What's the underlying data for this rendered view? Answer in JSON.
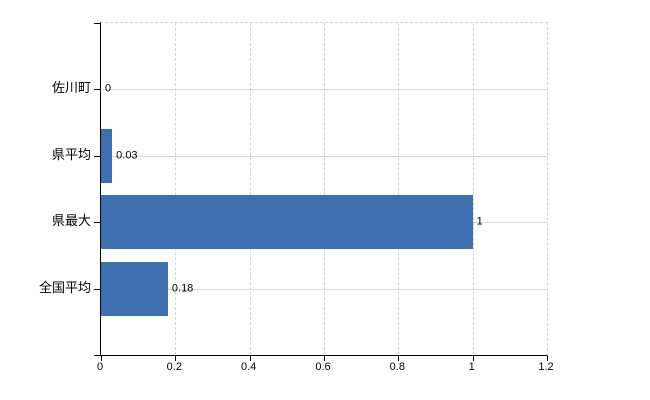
{
  "chart_data": {
    "type": "bar",
    "orientation": "horizontal",
    "title": "",
    "xlabel": "",
    "ylabel": "",
    "categories": [
      "佐川町",
      "県平均",
      "県最大",
      "全国平均"
    ],
    "values": [
      0,
      0.03,
      1,
      0.18
    ],
    "value_labels": [
      "0",
      "0.03",
      "1",
      "0.18"
    ],
    "xlim": [
      0,
      1.2
    ],
    "x_ticks": [
      0,
      0.2,
      0.4,
      0.6,
      0.8,
      1,
      1.2
    ],
    "x_tick_labels": [
      "0",
      "0.2",
      "0.4",
      "0.6",
      "0.8",
      "1",
      "1.2"
    ],
    "grid": true,
    "legend": false,
    "bar_color": "#3e6fae",
    "gridline_color": "#d4d8d4",
    "axis_color": "#000000",
    "label_color": "#000000"
  }
}
